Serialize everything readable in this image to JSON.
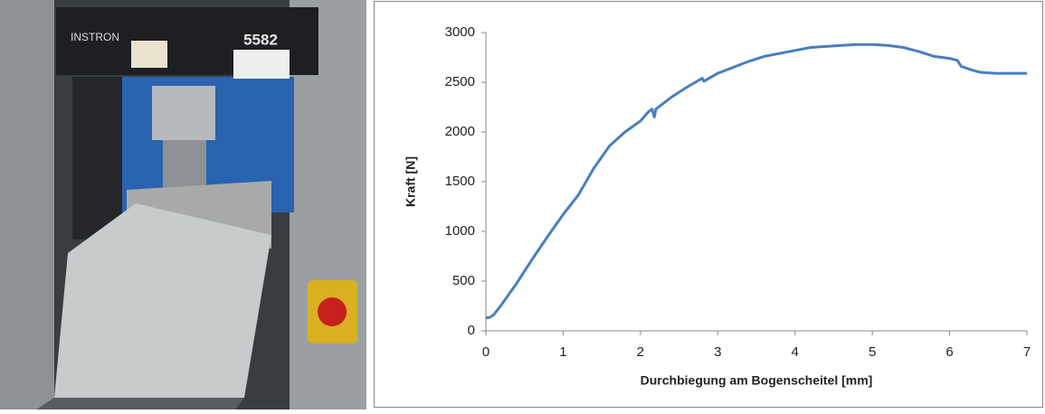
{
  "photo": {
    "labels": [
      "INSTRON",
      "5582"
    ]
  },
  "chart_data": {
    "type": "line",
    "x_label": "Durchbiegung am Bogenscheitel [mm]",
    "y_label": "Kraft [N]",
    "color": "#4a7ebf",
    "x": [
      0,
      0.05,
      0.1,
      0.2,
      0.4,
      0.6,
      0.8,
      1.0,
      1.2,
      1.4,
      1.42,
      1.6,
      1.8,
      2.0,
      2.1,
      2.15,
      2.18,
      2.2,
      2.4,
      2.6,
      2.8,
      2.82,
      3.0,
      3.2,
      3.4,
      3.6,
      3.8,
      4.0,
      4.2,
      4.4,
      4.6,
      4.8,
      5.0,
      5.2,
      5.4,
      5.6,
      5.8,
      6.0,
      6.1,
      6.15,
      6.3,
      6.4,
      6.6,
      7.0
    ],
    "values": [
      130,
      135,
      160,
      260,
      480,
      720,
      950,
      1170,
      1370,
      1640,
      1660,
      1860,
      2000,
      2110,
      2200,
      2230,
      2150,
      2230,
      2350,
      2450,
      2540,
      2510,
      2590,
      2650,
      2710,
      2760,
      2790,
      2820,
      2850,
      2860,
      2870,
      2880,
      2880,
      2870,
      2850,
      2810,
      2760,
      2740,
      2720,
      2660,
      2620,
      2600,
      2590,
      2590
    ],
    "xlim": [
      0,
      7
    ],
    "xticks": [
      0,
      1,
      2,
      3,
      4,
      5,
      6,
      7
    ],
    "ylim": [
      0,
      3000
    ],
    "yticks": [
      0,
      500,
      1000,
      1500,
      2000,
      2500,
      3000
    ],
    "grid": false
  }
}
